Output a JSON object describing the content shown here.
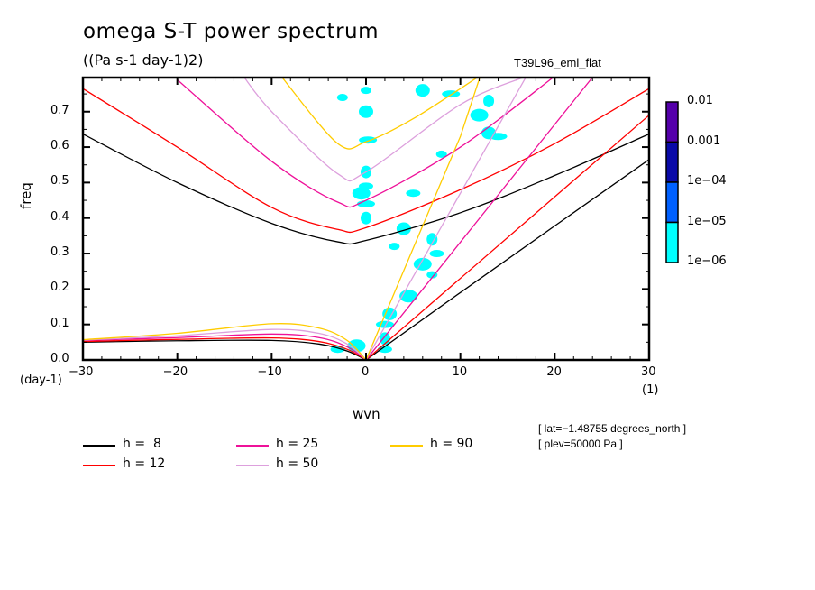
{
  "chart_data": {
    "type": "line",
    "title": "omega S-T power spectrum",
    "subtitle": "((Pa s-1 day-1)2)",
    "run_label": "T39L96_eml_flat",
    "xlabel": "wvn",
    "x_unit": "(1)",
    "ylabel": "freq",
    "y_unit": "(day-1)",
    "xlim": [
      -30,
      30
    ],
    "ylim": [
      0,
      0.796
    ],
    "x_ticks": [
      -30,
      -20,
      -10,
      0,
      10,
      20,
      30
    ],
    "x_tick_labels": [
      "−30",
      "−20",
      "−10",
      "0",
      "10",
      "20",
      "30"
    ],
    "y_ticks": [
      0.0,
      0.1,
      0.2,
      0.3,
      0.4,
      0.5,
      0.6,
      0.7
    ],
    "y_tick_labels": [
      "0.0",
      "0.1",
      "0.2",
      "0.3",
      "0.4",
      "0.5",
      "0.6",
      "0.7"
    ],
    "grid": false,
    "legend_position": "bottom",
    "info": [
      "[ lat=−1.48755 degrees_north ]",
      "[ plev=50000 Pa ]"
    ],
    "colorbar": {
      "levels": [
        "0.01",
        "0.001",
        "1e−04",
        "1e−05",
        "1e−06"
      ],
      "colors": [
        "#5500aa",
        "#0a0aa8",
        "#0060ff",
        "#00ffff"
      ]
    },
    "series": [
      {
        "name": "h =  8",
        "color": "#000000",
        "kelvin": {
          "x": [
            0,
            10,
            20,
            30
          ],
          "y": [
            0,
            0.19,
            0.378,
            0.565
          ]
        },
        "ig": {
          "x": [
            -30,
            -20,
            -10,
            -3,
            0,
            10,
            20,
            30
          ],
          "y": [
            0.637,
            0.5,
            0.385,
            0.333,
            0.337,
            0.415,
            0.52,
            0.637
          ]
        },
        "rossby": {
          "x": [
            -30,
            -20,
            -10,
            -5,
            -2,
            0
          ],
          "y": [
            0.05,
            0.054,
            0.055,
            0.045,
            0.025,
            0
          ]
        }
      },
      {
        "name": "h = 12",
        "color": "#ff0000",
        "kelvin": {
          "x": [
            0,
            10,
            20,
            30
          ],
          "y": [
            0,
            0.23,
            0.46,
            0.69
          ]
        },
        "ig": {
          "x": [
            -30,
            -20,
            -10,
            -3,
            0,
            10,
            20,
            30
          ],
          "y": [
            0.765,
            0.6,
            0.43,
            0.368,
            0.373,
            0.48,
            0.61,
            0.765
          ]
        },
        "rossby": {
          "x": [
            -30,
            -20,
            -10,
            -5,
            -2,
            0
          ],
          "y": [
            0.052,
            0.058,
            0.062,
            0.052,
            0.03,
            0
          ]
        }
      },
      {
        "name": "h = 25",
        "color": "#ee1199",
        "kelvin": {
          "x": [
            0,
            10,
            20,
            25
          ],
          "y": [
            0,
            0.332,
            0.664,
            0.83
          ]
        },
        "ig": {
          "x": [
            -20,
            -10,
            -3,
            0,
            10,
            20
          ],
          "y": [
            0.79,
            0.56,
            0.445,
            0.45,
            0.6,
            0.8
          ]
        },
        "rossby": {
          "x": [
            -30,
            -20,
            -10,
            -5,
            -2,
            0
          ],
          "y": [
            0.055,
            0.063,
            0.073,
            0.063,
            0.037,
            0
          ]
        }
      },
      {
        "name": "h = 50",
        "color": "#dda0dd",
        "kelvin": {
          "x": [
            0,
            10,
            17
          ],
          "y": [
            0,
            0.47,
            0.8
          ]
        },
        "ig": {
          "x": [
            -13,
            -10,
            -3,
            0,
            10,
            17
          ],
          "y": [
            0.8,
            0.7,
            0.525,
            0.53,
            0.72,
            0.8
          ]
        },
        "rossby": {
          "x": [
            -30,
            -20,
            -10,
            -5,
            -2,
            0
          ],
          "y": [
            0.056,
            0.068,
            0.086,
            0.075,
            0.045,
            0
          ]
        }
      },
      {
        "name": "h = 90",
        "color": "#ffcc00",
        "kelvin": {
          "x": [
            0,
            10,
            12.1
          ],
          "y": [
            0,
            0.63,
            0.8
          ]
        },
        "ig": {
          "x": [
            -9,
            -3,
            0,
            5,
            12
          ],
          "y": [
            0.8,
            0.61,
            0.615,
            0.68,
            0.8
          ]
        },
        "rossby": {
          "x": [
            -30,
            -20,
            -10,
            -5,
            -2,
            0
          ],
          "y": [
            0.057,
            0.075,
            0.102,
            0.09,
            0.055,
            0
          ]
        }
      }
    ],
    "power_field": {
      "description": "spectral power shaded cyan (1e-06 to 1e-05), concentrated near wvn 0 and along the positive-wvn Kelvin band",
      "blobs": [
        {
          "x": 0,
          "y": 0.76
        },
        {
          "x": 0,
          "y": 0.7
        },
        {
          "x": 0.2,
          "y": 0.62
        },
        {
          "x": 0,
          "y": 0.53
        },
        {
          "x": 0,
          "y": 0.49
        },
        {
          "x": -0.5,
          "y": 0.47
        },
        {
          "x": -2.5,
          "y": 0.74
        },
        {
          "x": 6,
          "y": 0.76
        },
        {
          "x": 9,
          "y": 0.75
        },
        {
          "x": 13,
          "y": 0.73
        },
        {
          "x": 5,
          "y": 0.47
        },
        {
          "x": 12,
          "y": 0.69
        },
        {
          "x": 8,
          "y": 0.58
        },
        {
          "x": 13,
          "y": 0.64
        },
        {
          "x": 14,
          "y": 0.63
        },
        {
          "x": 7,
          "y": 0.34
        },
        {
          "x": 7.5,
          "y": 0.3
        },
        {
          "x": 6,
          "y": 0.27
        },
        {
          "x": 7,
          "y": 0.24
        },
        {
          "x": 2.5,
          "y": 0.13
        },
        {
          "x": 2,
          "y": 0.1
        },
        {
          "x": 2,
          "y": 0.06
        },
        {
          "x": 2,
          "y": 0.03
        },
        {
          "x": 4.5,
          "y": 0.18
        },
        {
          "x": 3,
          "y": 0.32
        },
        {
          "x": 4,
          "y": 0.37
        },
        {
          "x": 0,
          "y": 0.44
        },
        {
          "x": 0,
          "y": 0.4
        },
        {
          "x": -3,
          "y": 0.03
        },
        {
          "x": -1,
          "y": 0.04
        }
      ]
    }
  },
  "legend": {
    "items": [
      {
        "label": "h =  8",
        "color": "#000000"
      },
      {
        "label": "h = 12",
        "color": "#ff0000"
      },
      {
        "label": "h = 25",
        "color": "#ee1199"
      },
      {
        "label": "h = 50",
        "color": "#dda0dd"
      },
      {
        "label": "h = 90",
        "color": "#ffcc00"
      }
    ]
  }
}
